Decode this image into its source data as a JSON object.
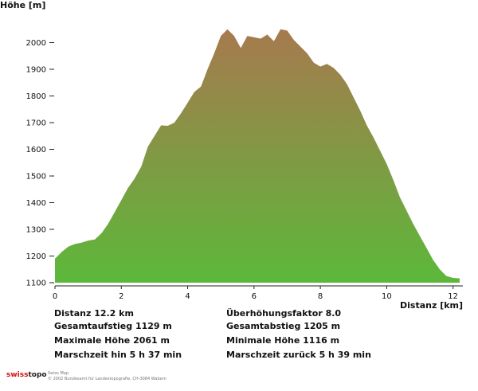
{
  "chart_data": {
    "type": "area",
    "ylabel": "Höhe [m]",
    "xlabel": "Distanz [km]",
    "xlim": [
      0,
      12.2
    ],
    "ylim": [
      1100,
      2100
    ],
    "xticks": [
      0,
      2,
      4,
      6,
      8,
      10,
      12
    ],
    "yticks": [
      1100,
      1200,
      1300,
      1400,
      1500,
      1600,
      1700,
      1800,
      1900,
      2000
    ],
    "fill_colors": {
      "top": "#a67a4e",
      "bottom": "#5cb83a"
    },
    "x": [
      0.0,
      0.2,
      0.4,
      0.6,
      0.8,
      1.0,
      1.2,
      1.4,
      1.6,
      1.8,
      2.0,
      2.2,
      2.4,
      2.6,
      2.8,
      3.0,
      3.2,
      3.4,
      3.6,
      3.8,
      4.0,
      4.2,
      4.4,
      4.6,
      4.8,
      5.0,
      5.2,
      5.4,
      5.6,
      5.8,
      6.0,
      6.2,
      6.4,
      6.6,
      6.8,
      7.0,
      7.2,
      7.4,
      7.6,
      7.8,
      8.0,
      8.2,
      8.4,
      8.6,
      8.8,
      9.0,
      9.2,
      9.4,
      9.6,
      9.8,
      10.0,
      10.2,
      10.4,
      10.6,
      10.8,
      11.0,
      11.2,
      11.4,
      11.6,
      11.8,
      12.0,
      12.2
    ],
    "y": [
      1190,
      1215,
      1235,
      1245,
      1250,
      1258,
      1262,
      1285,
      1320,
      1365,
      1410,
      1455,
      1490,
      1535,
      1610,
      1650,
      1690,
      1688,
      1700,
      1735,
      1775,
      1815,
      1835,
      1900,
      1960,
      2025,
      2050,
      2025,
      1980,
      2025,
      2020,
      2015,
      2030,
      2005,
      2050,
      2045,
      2010,
      1985,
      1960,
      1925,
      1910,
      1920,
      1905,
      1880,
      1845,
      1795,
      1745,
      1690,
      1645,
      1595,
      1545,
      1485,
      1420,
      1370,
      1320,
      1275,
      1230,
      1185,
      1150,
      1125,
      1118,
      1116
    ]
  },
  "stats": {
    "distanz": "Distanz 12.2 km",
    "gesamtaufstieg": "Gesamtaufstieg  1129 m",
    "maximale_hoehe": "Maximale Höhe  2061 m",
    "marschzeit_hin": "Marschzeit hin  5 h 37 min",
    "ueberhoehung": "Überhöhungsfaktor 8.0",
    "gesamtabstieg": "Gesamtabstieg  1205 m",
    "minimale_hoehe": "Minimale Höhe  1116 m",
    "marschzeit_zurueck": "Marschzeit zurück  5 h 39 min"
  },
  "footer": {
    "brand_red": "swiss",
    "brand_black": "topo",
    "line1": "Swiss Map",
    "line2": "© 2002 Bundesamt für Landestopografie, CH-3084 Wabern"
  }
}
